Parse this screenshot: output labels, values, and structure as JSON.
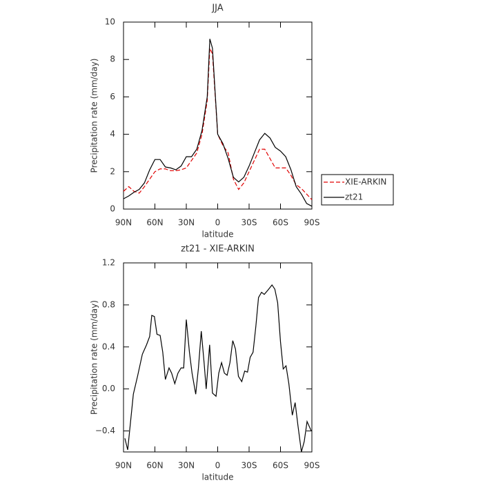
{
  "chart_data": [
    {
      "type": "line",
      "title": "JJA",
      "xlabel": "latitude",
      "ylabel": "Precipitation rate (mm/day)",
      "x": [
        90,
        85,
        80,
        75,
        70,
        65,
        60,
        55,
        50,
        45,
        40,
        35,
        30,
        25,
        20,
        15,
        10,
        7.5,
        5,
        0,
        -5,
        -10,
        -15,
        -20,
        -25,
        -30,
        -35,
        -40,
        -45,
        -50,
        -55,
        -60,
        -65,
        -70,
        -75,
        -80,
        -85,
        -90
      ],
      "series": [
        {
          "name": "XIE-ARKIN",
          "color": "#e00000",
          "linestyle": "dashed",
          "values": [
            0.95,
            1.2,
            0.95,
            0.85,
            1.2,
            1.6,
            2.0,
            2.15,
            2.15,
            2.05,
            2.05,
            2.1,
            2.2,
            2.6,
            3.0,
            4.0,
            5.8,
            8.6,
            8.3,
            4.0,
            3.4,
            3.0,
            1.6,
            1.05,
            1.4,
            2.0,
            2.6,
            3.2,
            3.2,
            2.7,
            2.2,
            2.2,
            2.2,
            1.8,
            1.3,
            1.1,
            0.8,
            0.5
          ]
        },
        {
          "name": "zt21",
          "color": "#000000",
          "linestyle": "solid",
          "values": [
            0.55,
            0.7,
            0.9,
            1.05,
            1.4,
            2.1,
            2.65,
            2.65,
            2.25,
            2.2,
            2.1,
            2.3,
            2.8,
            2.8,
            3.2,
            4.2,
            6.0,
            9.1,
            8.6,
            4.0,
            3.5,
            2.7,
            1.7,
            1.45,
            1.7,
            2.3,
            3.0,
            3.7,
            4.05,
            3.8,
            3.3,
            3.1,
            2.8,
            2.1,
            1.2,
            0.8,
            0.3,
            0.15
          ]
        }
      ],
      "xlim": [
        90,
        -90
      ],
      "xticks": [
        {
          "value": 90,
          "label": "90N"
        },
        {
          "value": 60,
          "label": "60N"
        },
        {
          "value": 30,
          "label": "30N"
        },
        0,
        {
          "value": -30,
          "label": "30S"
        },
        {
          "value": -60,
          "label": "60S"
        },
        {
          "value": -90,
          "label": "90S"
        }
      ],
      "ylim": [
        0,
        10
      ],
      "yticks": [
        0,
        2,
        4,
        6,
        8,
        10
      ],
      "legend": "right"
    },
    {
      "type": "line",
      "title": "zt21 - XIE-ARKIN",
      "xlabel": "latitude",
      "ylabel": "Precipitation rate (mm/day)",
      "x": [
        88.7,
        86,
        80.6,
        76.6,
        72,
        68,
        65,
        63,
        60.5,
        58,
        55,
        52.5,
        50,
        46.5,
        44,
        41,
        38,
        35,
        32.5,
        30,
        27,
        24.5,
        21,
        18.4,
        15.7,
        13,
        11,
        7.7,
        5,
        1.6,
        -1,
        -3.7,
        -6.4,
        -9,
        -11.7,
        -14.4,
        -17,
        -19.8,
        -23,
        -25.8,
        -28.5,
        -31,
        -33.8,
        -36.5,
        -39,
        -41.9,
        -44.5,
        -47.9,
        -51.9,
        -54.6,
        -57.3,
        -60,
        -62.6,
        -65.3,
        -68,
        -71.3,
        -74,
        -76.7,
        -80,
        -82.7,
        -85.4,
        -89.4
      ],
      "series": [
        {
          "name": "zt21",
          "color": "#000000",
          "linestyle": "solid",
          "values": [
            -0.47,
            -0.58,
            -0.05,
            0.12,
            0.33,
            0.42,
            0.5,
            0.7,
            0.69,
            0.52,
            0.51,
            0.35,
            0.09,
            0.2,
            0.15,
            0.05,
            0.15,
            0.2,
            0.2,
            0.66,
            0.35,
            0.15,
            -0.05,
            0.2,
            0.55,
            0.25,
            0.0,
            0.42,
            -0.04,
            -0.07,
            0.15,
            0.25,
            0.15,
            0.13,
            0.25,
            0.46,
            0.38,
            0.12,
            0.07,
            0.17,
            0.16,
            0.3,
            0.35,
            0.6,
            0.87,
            0.92,
            0.9,
            0.94,
            0.99,
            0.95,
            0.82,
            0.45,
            0.19,
            0.22,
            0.05,
            -0.25,
            -0.13,
            -0.35,
            -0.6,
            -0.5,
            -0.31,
            -0.4
          ]
        }
      ],
      "xlim": [
        90,
        -90
      ],
      "xticks": [
        {
          "value": 90,
          "label": "90N"
        },
        {
          "value": 60,
          "label": "60N"
        },
        {
          "value": 30,
          "label": "30N"
        },
        0,
        {
          "value": -30,
          "label": "30S"
        },
        {
          "value": -60,
          "label": "60S"
        },
        {
          "value": -90,
          "label": "90S"
        }
      ],
      "ylim": [
        -0.6,
        1.2
      ],
      "yticks": [
        {
          "value": -0.4,
          "label": "−0.4"
        },
        {
          "value": 0,
          "label": "0.0"
        },
        0.4,
        0.8,
        1.2
      ]
    }
  ]
}
